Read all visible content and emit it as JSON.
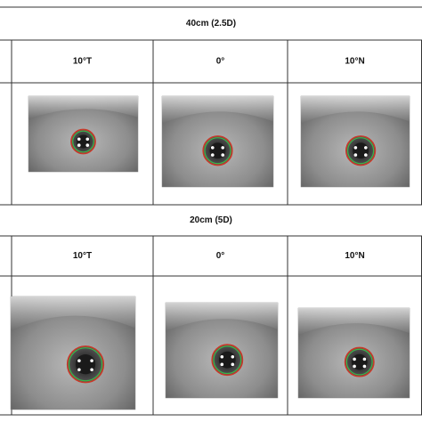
{
  "sections": [
    {
      "title": "40cm (2.5D)",
      "columns": [
        "10°T",
        "0°",
        "10°N"
      ]
    },
    {
      "title": "20cm (5D)",
      "columns": [
        "10°T",
        "0°",
        "10°N"
      ]
    }
  ]
}
